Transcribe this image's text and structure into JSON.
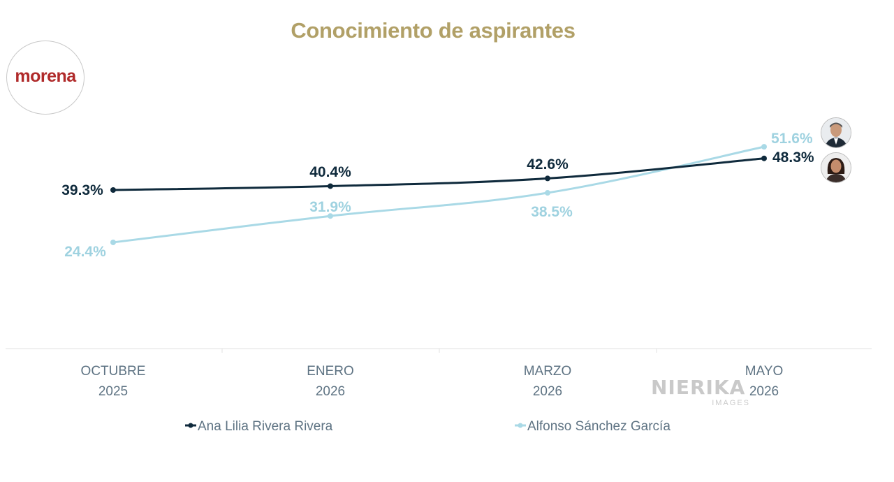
{
  "title": "Conocimiento de aspirantes",
  "logo": {
    "text": "morena",
    "color": "#b02a2a"
  },
  "watermark": {
    "main": "NIERIKA",
    "sub": "IMAGES"
  },
  "chart_data": {
    "type": "line",
    "title": "Conocimiento de aspirantes",
    "categories": [
      [
        "OCTUBRE",
        "2025"
      ],
      [
        "ENERO",
        "2026"
      ],
      [
        "MARZO",
        "2026"
      ],
      [
        "MAYO",
        "2026"
      ]
    ],
    "series": [
      {
        "name": "Ana Lilia Rivera Rivera",
        "color": "#0f2a3c",
        "values": [
          39.3,
          40.4,
          42.6,
          48.3
        ],
        "labels": [
          "39.3%",
          "40.4%",
          "42.6%",
          "48.3%"
        ]
      },
      {
        "name": "Alfonso Sánchez García",
        "color": "#a9d9e6",
        "values": [
          24.4,
          31.9,
          38.5,
          51.6
        ],
        "labels": [
          "24.4%",
          "31.9%",
          "38.5%",
          "51.6%"
        ]
      }
    ],
    "legend_position": "bottom",
    "grid": false,
    "avatars": [
      "man-portrait-icon",
      "woman-portrait-icon"
    ]
  }
}
